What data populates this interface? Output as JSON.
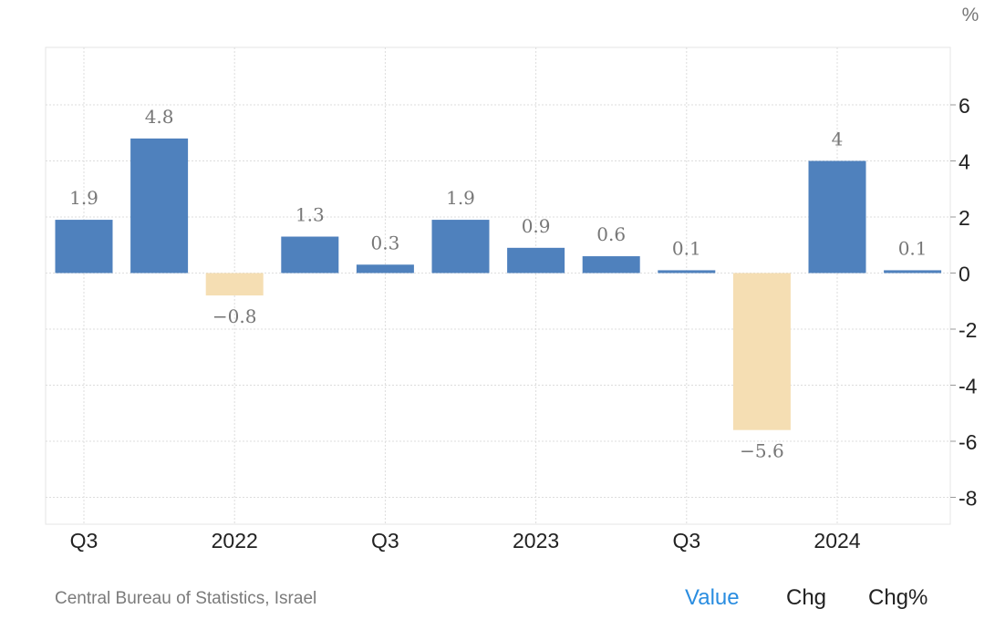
{
  "chart_data": {
    "type": "bar",
    "unit": "%",
    "categories": [
      "",
      "",
      "",
      "",
      "",
      "",
      "",
      "",
      "",
      "",
      "",
      ""
    ],
    "values": [
      1.9,
      4.8,
      -0.8,
      1.3,
      0.3,
      1.9,
      0.9,
      0.6,
      0.1,
      -5.6,
      4,
      0.1
    ],
    "value_labels": [
      "1.9",
      "4.8",
      "−0.8",
      "1.3",
      "0.3",
      "1.9",
      "0.9",
      "0.6",
      "0.1",
      "−5.6",
      "4",
      "0.1"
    ],
    "x_tick_labels": [
      {
        "index": 0,
        "label": "Q3"
      },
      {
        "index": 2,
        "label": "2022"
      },
      {
        "index": 4,
        "label": "Q3"
      },
      {
        "index": 6,
        "label": "2023"
      },
      {
        "index": 8,
        "label": "Q3"
      },
      {
        "index": 10,
        "label": "2024"
      }
    ],
    "y_ticks": [
      6,
      4,
      2,
      0,
      -2,
      -4,
      -6,
      -8
    ],
    "y_tick_labels": [
      "6",
      "4",
      "2",
      "0",
      "-2",
      "-4",
      "-6",
      "-8"
    ],
    "ylim": [
      -9,
      8
    ],
    "y_axis_position": "right",
    "grid": true,
    "colors": {
      "positive": "#4f81bd",
      "negative": "#f5deb3",
      "grid": "#dddddd",
      "tick_text": "#222222",
      "value_label": "#777777"
    }
  },
  "footer": {
    "source": "Central Bureau of Statistics, Israel",
    "tabs": {
      "value": "Value",
      "chg": "Chg",
      "chg_pct": "Chg%"
    },
    "active_tab_color": "#2a8de0"
  }
}
